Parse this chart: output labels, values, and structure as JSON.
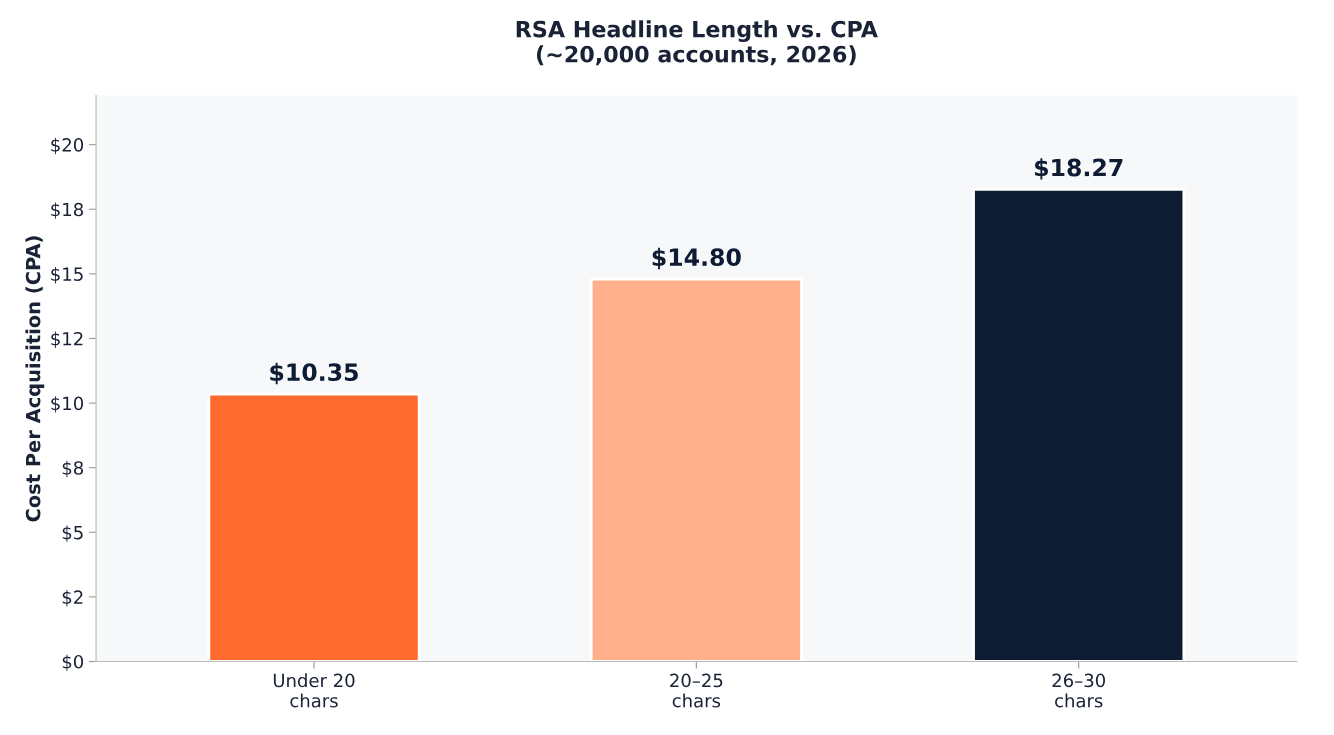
{
  "chart_data": {
    "type": "bar",
    "title": "RSA Headline Length vs. CPA\n(~20,000 accounts, 2026)",
    "ylabel": "Cost Per Acquisition (CPA)",
    "categories": [
      "Under 20\nchars",
      "20–25\nchars",
      "26–30\nchars"
    ],
    "values": [
      10.35,
      14.8,
      18.27
    ],
    "colors": [
      "#ff6b2f",
      "#ffb08a",
      "#0d1b33"
    ],
    "value_labels": [
      "$10.35",
      "$14.80",
      "$18.27"
    ],
    "ylim": [
      0,
      21.9
    ],
    "yticks": [
      {
        "value": 0,
        "label": "$0"
      },
      {
        "value": 2.5,
        "label": "$2"
      },
      {
        "value": 5,
        "label": "$5"
      },
      {
        "value": 7.5,
        "label": "$8"
      },
      {
        "value": 10,
        "label": "$10"
      },
      {
        "value": 12.5,
        "label": "$12"
      },
      {
        "value": 15,
        "label": "$15"
      },
      {
        "value": 17.5,
        "label": "$18"
      },
      {
        "value": 20,
        "label": "$20"
      }
    ],
    "grid": false,
    "legend": false
  }
}
